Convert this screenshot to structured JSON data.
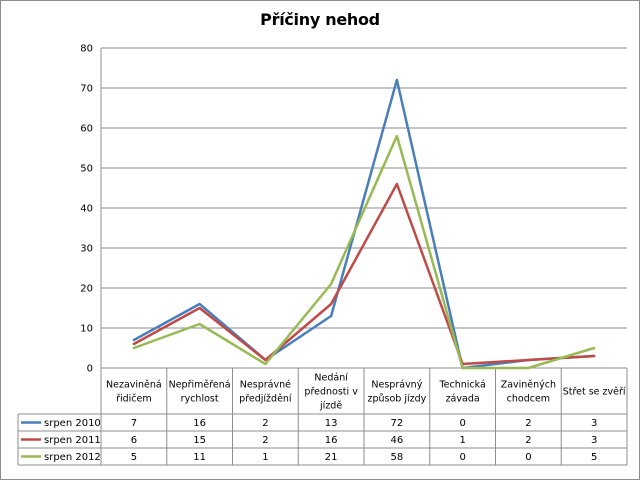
{
  "chart_data": {
    "type": "line",
    "title": "Příčiny nehod",
    "categories": [
      [
        "Nezaviněná",
        "řidičem"
      ],
      [
        "Nepřiměřená",
        "rychlost"
      ],
      [
        "Nesprávné",
        "předjíždění"
      ],
      [
        "Nedání",
        "přednosti v",
        "jízdě"
      ],
      [
        "Nesprávný",
        "způsob jízdy"
      ],
      [
        "Technická",
        "závada"
      ],
      [
        "Zaviněných",
        "chodcem"
      ],
      [
        "Střet se zvěří"
      ]
    ],
    "ylim": [
      0,
      80
    ],
    "yticks": [
      0,
      10,
      20,
      30,
      40,
      50,
      60,
      70,
      80
    ],
    "grid": true,
    "legend": "data-table",
    "series": [
      {
        "name": "srpen 2010",
        "color": "#4a7ebb",
        "values": [
          7,
          16,
          2,
          13,
          72,
          0,
          2,
          3
        ]
      },
      {
        "name": "srpen 2011",
        "color": "#be4b48",
        "values": [
          6,
          15,
          2,
          16,
          46,
          1,
          2,
          3
        ]
      },
      {
        "name": "srpen 2012",
        "color": "#98b954",
        "values": [
          5,
          11,
          1,
          21,
          58,
          0,
          0,
          5
        ]
      }
    ]
  }
}
